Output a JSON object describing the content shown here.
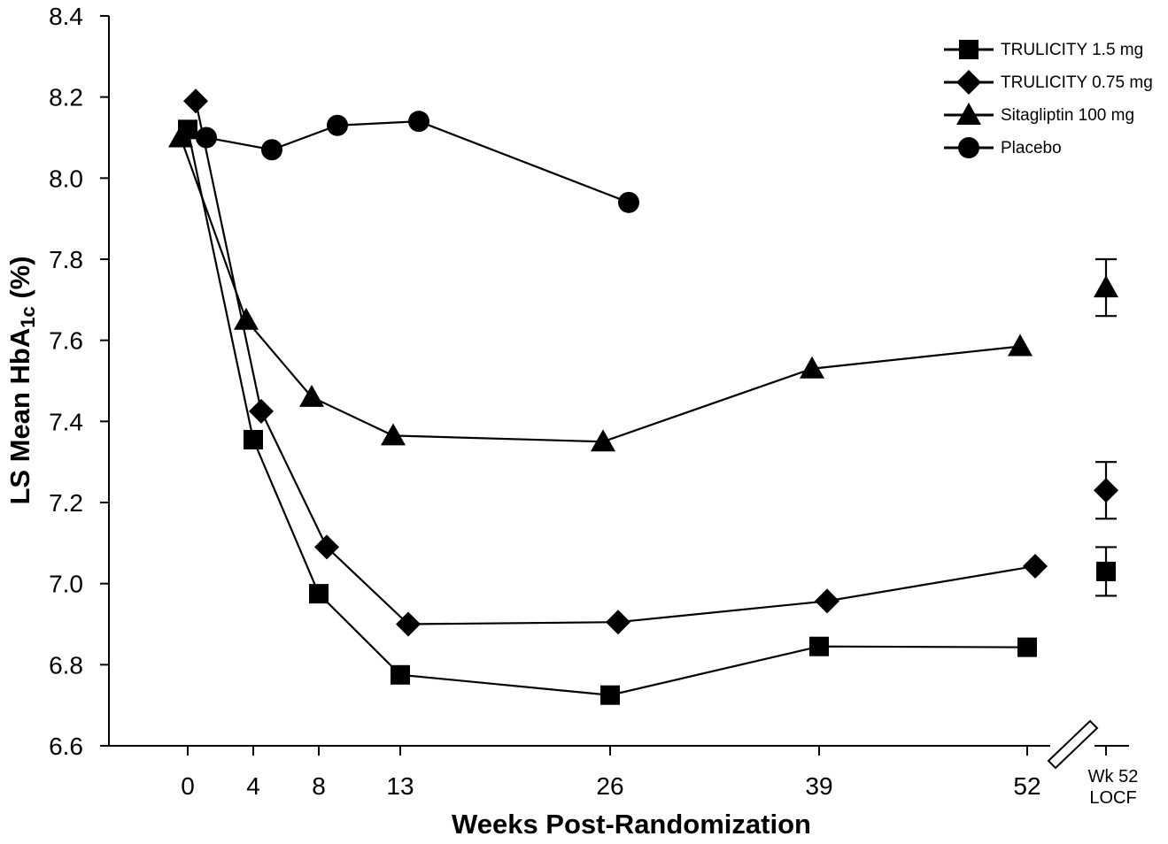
{
  "chart_data": {
    "type": "line",
    "ylabel": "LS Mean HbA1c (%)",
    "ylabel_main": "LS Mean HbA",
    "ylabel_sub": "1c",
    "ylabel_tail": " (%)",
    "xlabel": "Weeks Post-Randomization",
    "ylim": [
      6.6,
      8.4
    ],
    "yticks": [
      6.6,
      6.8,
      7.0,
      7.2,
      7.4,
      7.6,
      7.8,
      8.0,
      8.2,
      8.4
    ],
    "ytick_labels": [
      "6.6",
      "6.8",
      "7.0",
      "7.2",
      "7.4",
      "7.6",
      "7.8",
      "8.0",
      "8.2",
      "8.4"
    ],
    "xticks": [
      0,
      4,
      8,
      13,
      26,
      39,
      52
    ],
    "xtick_labels": [
      "0",
      "4",
      "8",
      "13",
      "26",
      "39",
      "52"
    ],
    "locf_label_line1": "Wk 52",
    "locf_label_line2": "LOCF",
    "legend_position": "top-right",
    "axis_break": true,
    "series": [
      {
        "name": "TRULICITY 1.5 mg",
        "marker": "square",
        "points": [
          {
            "x": 0,
            "y": 8.12
          },
          {
            "x": 4,
            "y": 7.355
          },
          {
            "x": 8,
            "y": 6.975
          },
          {
            "x": 13,
            "y": 6.775
          },
          {
            "x": 26,
            "y": 6.725
          },
          {
            "x": 39,
            "y": 6.845
          },
          {
            "x": 52,
            "y": 6.843
          }
        ],
        "locf": {
          "y": 7.03,
          "lo": 6.97,
          "hi": 7.09
        }
      },
      {
        "name": "TRULICITY 0.75 mg",
        "marker": "diamond",
        "points": [
          {
            "x": 0,
            "y": 8.19
          },
          {
            "x": 4,
            "y": 7.425
          },
          {
            "x": 8,
            "y": 7.09
          },
          {
            "x": 13,
            "y": 6.9
          },
          {
            "x": 26,
            "y": 6.905
          },
          {
            "x": 39,
            "y": 6.957
          },
          {
            "x": 52,
            "y": 7.043
          }
        ],
        "locf": {
          "y": 7.23,
          "lo": 7.16,
          "hi": 7.3
        }
      },
      {
        "name": "Sitagliptin 100 mg",
        "marker": "triangle",
        "points": [
          {
            "x": 0,
            "y": 8.1
          },
          {
            "x": 4,
            "y": 7.65
          },
          {
            "x": 8,
            "y": 7.46
          },
          {
            "x": 13,
            "y": 7.365
          },
          {
            "x": 26,
            "y": 7.35
          },
          {
            "x": 39,
            "y": 7.53
          },
          {
            "x": 52,
            "y": 7.585
          }
        ],
        "locf": {
          "y": 7.73,
          "lo": 7.66,
          "hi": 7.8
        }
      },
      {
        "name": "Placebo",
        "marker": "circle",
        "points": [
          {
            "x": 0,
            "y": 8.1
          },
          {
            "x": 4,
            "y": 8.07
          },
          {
            "x": 8,
            "y": 8.13
          },
          {
            "x": 13,
            "y": 8.14
          },
          {
            "x": 26,
            "y": 7.94
          }
        ],
        "locf": null
      }
    ]
  }
}
